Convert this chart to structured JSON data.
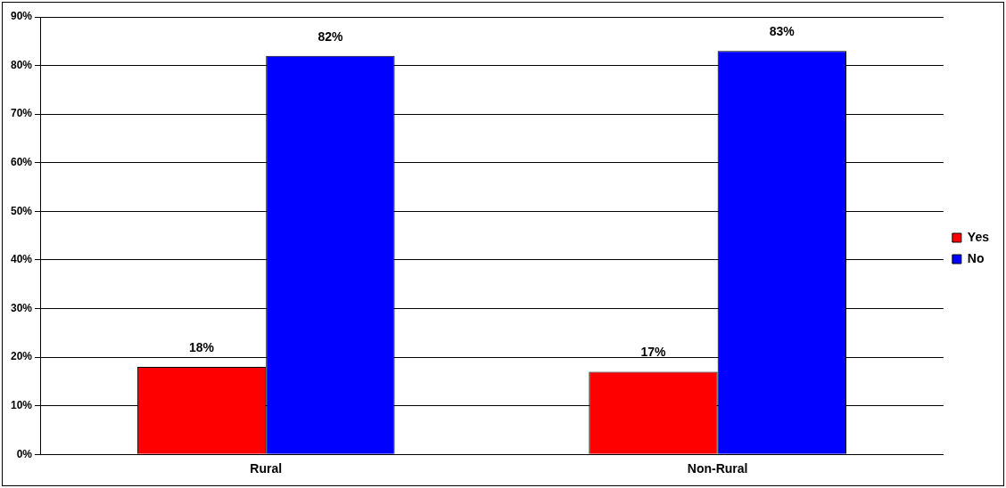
{
  "chart_data": {
    "type": "bar",
    "categories": [
      "Rural",
      "Non-Rural"
    ],
    "series": [
      {
        "name": "Yes",
        "color": "#ff0000",
        "values": [
          18,
          17
        ],
        "value_labels": [
          "18%",
          "17%"
        ]
      },
      {
        "name": "No",
        "color": "#0000ff",
        "values": [
          82,
          83
        ],
        "value_labels": [
          "82%",
          "83%"
        ]
      }
    ],
    "ylim": [
      0,
      90
    ],
    "yticks": [
      {
        "value": 0,
        "label": "0%"
      },
      {
        "value": 10,
        "label": "10%"
      },
      {
        "value": 20,
        "label": "20%"
      },
      {
        "value": 30,
        "label": "30%"
      },
      {
        "value": 40,
        "label": "40%"
      },
      {
        "value": 50,
        "label": "50%"
      },
      {
        "value": 60,
        "label": "60%"
      },
      {
        "value": 70,
        "label": "70%"
      },
      {
        "value": 80,
        "label": "80%"
      },
      {
        "value": 90,
        "label": "90%"
      }
    ],
    "grid": "y",
    "legend": "right"
  }
}
